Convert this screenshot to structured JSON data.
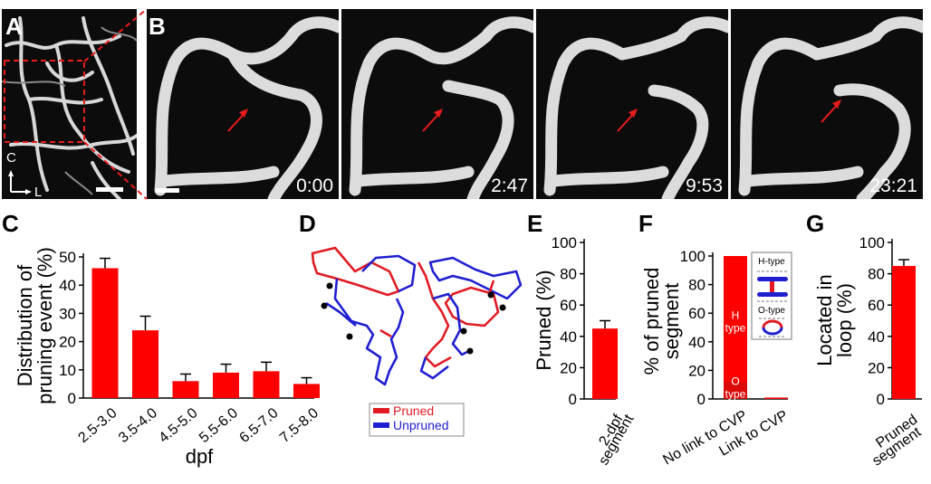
{
  "panel_labels": {
    "A": "A",
    "B": "B",
    "C": "C",
    "D": "D",
    "E": "E",
    "F": "F",
    "G": "G"
  },
  "panel_a": {
    "axis_c": "C",
    "axis_l": "L"
  },
  "panel_b": {
    "timestamps": [
      "0:00",
      "2:47",
      "9:53",
      "23:21"
    ]
  },
  "chart_data": [
    {
      "panel": "C",
      "type": "bar",
      "categories": [
        "2.5-3.0",
        "3.5-4.0",
        "4.5-5.0",
        "5.5-6.0",
        "6.5-7.0",
        "7.5-8.0"
      ],
      "values": [
        46,
        24,
        6,
        9,
        9.5,
        5
      ],
      "errors": [
        3.5,
        5,
        2.5,
        3,
        3.2,
        2.2
      ],
      "ylabel": "Distribution of pruning event (%)",
      "xlabel": "dpf",
      "ylim": [
        0,
        50
      ],
      "yticks": [
        0,
        10,
        20,
        30,
        40,
        50
      ],
      "bar_color": "#ff0000"
    },
    {
      "panel": "E",
      "type": "bar",
      "categories": [
        "2-dpf segment"
      ],
      "values": [
        45
      ],
      "errors": [
        5
      ],
      "ylabel": "Pruned (%)",
      "ylim": [
        0,
        100
      ],
      "yticks": [
        0,
        20,
        40,
        60,
        80,
        100
      ],
      "bar_color": "#ff0000"
    },
    {
      "panel": "F",
      "type": "bar",
      "categories": [
        "No link to CVP",
        "Link to CVP"
      ],
      "values": [
        100,
        1
      ],
      "stack_segments": [
        {
          "label": "H type",
          "category": "No link to CVP",
          "range": [
            12,
            100
          ]
        },
        {
          "label": "O type",
          "category": "No link to CVP",
          "range": [
            0,
            12
          ]
        }
      ],
      "ylabel": "% of pruned segment",
      "ylim": [
        0,
        100
      ],
      "yticks": [
        0,
        20,
        40,
        60,
        80,
        100
      ],
      "bar_color": "#ff0000",
      "inset": {
        "h_label": "H-type",
        "o_label": "O-type"
      }
    },
    {
      "panel": "G",
      "type": "bar",
      "categories": [
        "Pruned segment"
      ],
      "values": [
        85
      ],
      "errors": [
        4
      ],
      "ylabel": "Located in loop (%)",
      "ylim": [
        0,
        100
      ],
      "yticks": [
        0,
        20,
        40,
        60,
        80,
        100
      ],
      "bar_color": "#ff0000"
    }
  ],
  "panel_d": {
    "legend": [
      {
        "label": "Pruned",
        "color": "#e01b24"
      },
      {
        "label": "Unpruned",
        "color": "#1f1fd0"
      }
    ]
  }
}
